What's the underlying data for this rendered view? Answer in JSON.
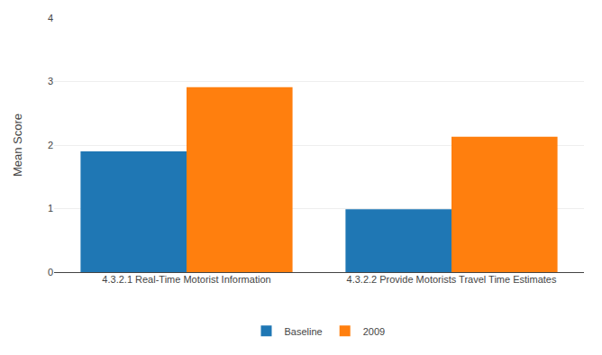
{
  "chart_data": {
    "type": "bar",
    "categories": [
      "4.3.2.1 Real-Time Motorist Information",
      "4.3.2.2 Provide Motorists Travel Time Estimates"
    ],
    "series": [
      {
        "name": "Baseline",
        "values": [
          1.9,
          0.99
        ]
      },
      {
        "name": "2009",
        "values": [
          2.91,
          2.13
        ]
      }
    ],
    "ylabel": "Mean Score",
    "ylim": [
      0,
      4
    ],
    "yticks": [
      0,
      1,
      2,
      3,
      4
    ],
    "grid": true,
    "legend": "bottom"
  }
}
